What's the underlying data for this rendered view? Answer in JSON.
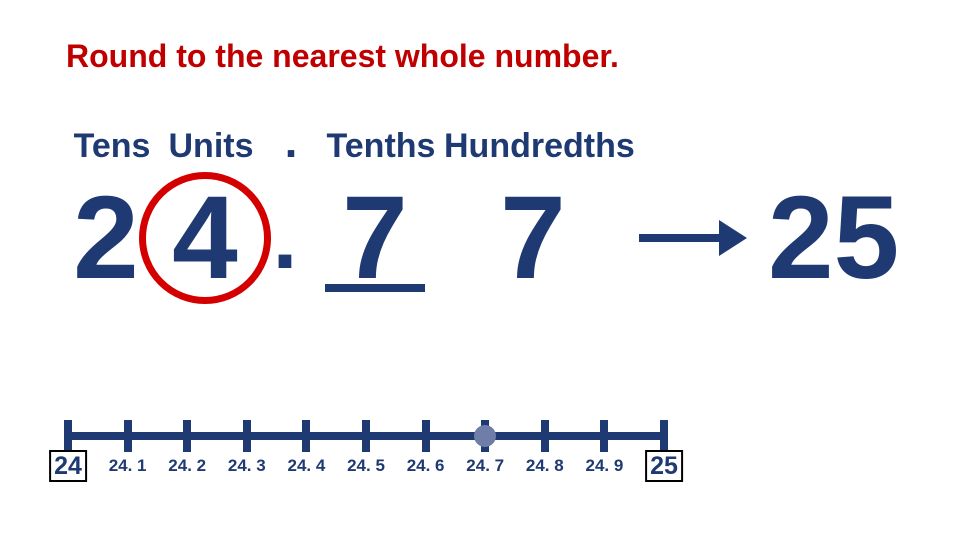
{
  "title": "Round to the nearest whole number.",
  "colors": {
    "primary": "#1f3a73",
    "accent_red": "#c00000",
    "circle_red": "#d40000",
    "marker": "#6f7ea8",
    "background": "#ffffff"
  },
  "typography": {
    "font_family": "Comic Sans MS",
    "title_fontsize": 32,
    "header_fontsize": 34,
    "digit_fontsize": 118,
    "nl_label_fontsize": 17,
    "nl_end_fontsize": 25
  },
  "place_value": {
    "headers": {
      "tens": "Tens",
      "units": "Units",
      "dot": ".",
      "tenths": "Tenths",
      "hundredths": "Hundredths"
    },
    "digits": {
      "tens": "2",
      "units": "4",
      "dot": ".",
      "tenths": "7",
      "hundredths": "7"
    },
    "circled_column": "units",
    "underlined_column": "tenths",
    "result": "25"
  },
  "number_line": {
    "start": 24,
    "end": 25,
    "step": 0.1,
    "tick_color": "#1f3a73",
    "line_color": "#1f3a73",
    "tick_width": 8,
    "tick_height": 32,
    "line_height": 8,
    "boxed_ends": true,
    "labels": [
      "24",
      "24. 1",
      "24. 2",
      "24. 3",
      "24. 4",
      "24. 5",
      "24. 6",
      "24. 7",
      "24. 8",
      "24. 9",
      "25"
    ],
    "marker_value": 24.7
  }
}
